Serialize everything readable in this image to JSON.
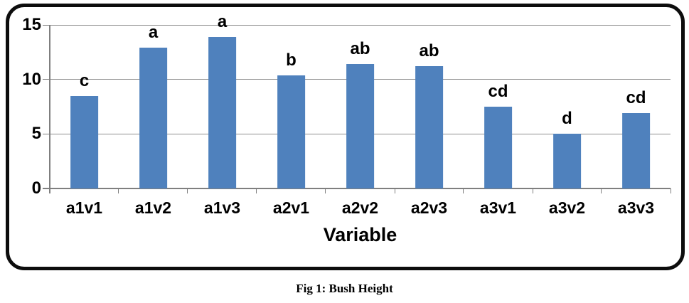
{
  "figure": {
    "caption": "Fig 1: Bush Height"
  },
  "chart_data": {
    "type": "bar",
    "title": "",
    "xlabel": "Variable",
    "ylabel": "",
    "categories": [
      "a1v1",
      "a1v2",
      "a1v3",
      "a2v1",
      "a2v2",
      "a2v3",
      "a3v1",
      "a3v2",
      "a3v3"
    ],
    "values": [
      8.5,
      12.9,
      13.9,
      10.4,
      11.4,
      11.2,
      7.5,
      5.0,
      6.9
    ],
    "bar_labels": [
      "c",
      "a",
      "a",
      "b",
      "ab",
      "ab",
      "cd",
      "d",
      "cd"
    ],
    "ylim": [
      0,
      15
    ],
    "yticks": [
      0,
      5,
      10,
      15
    ],
    "grid": true,
    "legend": false,
    "colors": {
      "bar": "#4F81BD",
      "gridline": "#8e8e8e",
      "axis": "#7f7f7f",
      "text": "#000000"
    }
  }
}
